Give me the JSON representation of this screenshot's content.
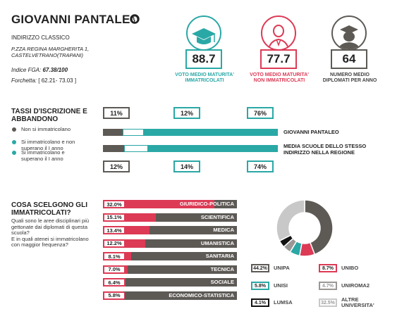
{
  "header": {
    "name": "GIOVANNI PANTALEO",
    "school_type": "INDIRIZZO CLASSICO",
    "address_line1": "P.ZZA REGINA MARGHERITA 1,",
    "address_line2": "CASTELVETRANO(TRAPANI)",
    "fga_label": "Indice FGA:",
    "fga_value": "67.38/100",
    "range_label": "Forchetta:",
    "range_value": "[ 62.21- 73.03 ]"
  },
  "stats": [
    {
      "value": "88.7",
      "caption1": "VOTO MEDIO MATURITA'",
      "caption2": "IMMATRICOLATI",
      "color": "#2aa8a6",
      "icon": "graduate-cap-icon"
    },
    {
      "value": "77.7",
      "caption1": "VOTO MEDIO MATURITA'",
      "caption2": "NON IMMATRICOLATI",
      "color": "#dc3a55",
      "icon": "student-icon"
    },
    {
      "value": "64",
      "caption1": "NUMERO MEDIO",
      "caption2": "DIPLOMATI PER ANNO",
      "color": "#5d5a56",
      "icon": "graduate-group-icon"
    }
  ],
  "enrollment": {
    "title_line1": "TASSI D'ISCRIZIONE E",
    "title_line2": "ABBANDONO",
    "legend": [
      {
        "text1": "Non si immatricolano",
        "text2": "",
        "color": "#5d5a56"
      },
      {
        "text1": "Si immatricolano e non",
        "text2": "superano il I anno",
        "color": "#2aa8a6"
      },
      {
        "text1": "Si immatricolano e",
        "text2": "superano il I anno",
        "color": "#2aa8a6"
      }
    ],
    "top_pcts": [
      "11%",
      "12%",
      "76%"
    ],
    "bottom_pcts": [
      "12%",
      "14%",
      "74%"
    ],
    "row1_label": "GIOVANNI PANTALEO",
    "row2_label1": "MEDIA SCUOLE DELLO STESSO",
    "row2_label2": "INDIRIZZO NELLA REGIONE"
  },
  "choices": {
    "title_line1": "COSA SCELGONO GLI",
    "title_line2": "IMMATRICOLATI?",
    "q1": "Quali sono le aree disciplinari più",
    "q2": "gettonate dai diplomati di questa",
    "q3": "scuola?",
    "q4": "E in quali atenei si immatricolano",
    "q5": "con maggior frequenza?"
  },
  "universities": [
    {
      "pct": "44.2%",
      "name1": "UNIPA",
      "name2": "",
      "color": "#5d5a56"
    },
    {
      "pct": "8.7%",
      "name1": "UNIBO",
      "name2": "",
      "color": "#dc3a55"
    },
    {
      "pct": "5.8%",
      "name1": "UNISI",
      "name2": "",
      "color": "#2aa8a6"
    },
    {
      "pct": "4.7%",
      "name1": "UNIROMA2",
      "name2": "",
      "color": "#9a9794"
    },
    {
      "pct": "4.1%",
      "name1": "LUMSA",
      "name2": "",
      "color": "#111111"
    },
    {
      "pct": "32.5%",
      "name1": "ALTRE",
      "name2": "UNIVERSITA'",
      "color": "#c8c8c8"
    }
  ],
  "chart_data": [
    {
      "type": "bar",
      "title": "COSA SCELGONO GLI IMMATRICOLATI?",
      "categories": [
        "GIURIDICO-POLITICA",
        "SCIENTIFICA",
        "MEDICA",
        "UMANISTICA",
        "SANITARIA",
        "TECNICA",
        "SOCIALE",
        "ECONOMICO-STATISTICA"
      ],
      "values": [
        32.0,
        15.1,
        13.4,
        12.2,
        8.1,
        7.0,
        6.4,
        5.8
      ],
      "labels": [
        "32.0%",
        "15.1%",
        "13.4%",
        "12.2%",
        "8.1%",
        "7.0%",
        "6.4%",
        "5.8%"
      ],
      "ylim": [
        0,
        100
      ]
    },
    {
      "type": "pie",
      "categories": [
        "UNIPA",
        "UNIBO",
        "UNISI",
        "UNIROMA2",
        "LUMSA",
        "ALTRE UNIVERSITA'"
      ],
      "values": [
        44.2,
        8.7,
        5.8,
        4.7,
        4.1,
        32.5
      ]
    },
    {
      "type": "bar",
      "title": "TASSI D'ISCRIZIONE E ABBANDONO",
      "categories": [
        "GIOVANNI PANTALEO",
        "MEDIA SCUOLE DELLO STESSO INDIRIZZO NELLA REGIONE"
      ],
      "series": [
        {
          "name": "Non si immatricolano",
          "values": [
            11,
            12
          ]
        },
        {
          "name": "Si immatricolano e non superano il I anno",
          "values": [
            12,
            14
          ]
        },
        {
          "name": "Si immatricolano e superano il I anno",
          "values": [
            76,
            74
          ]
        }
      ],
      "stacked": true
    }
  ]
}
